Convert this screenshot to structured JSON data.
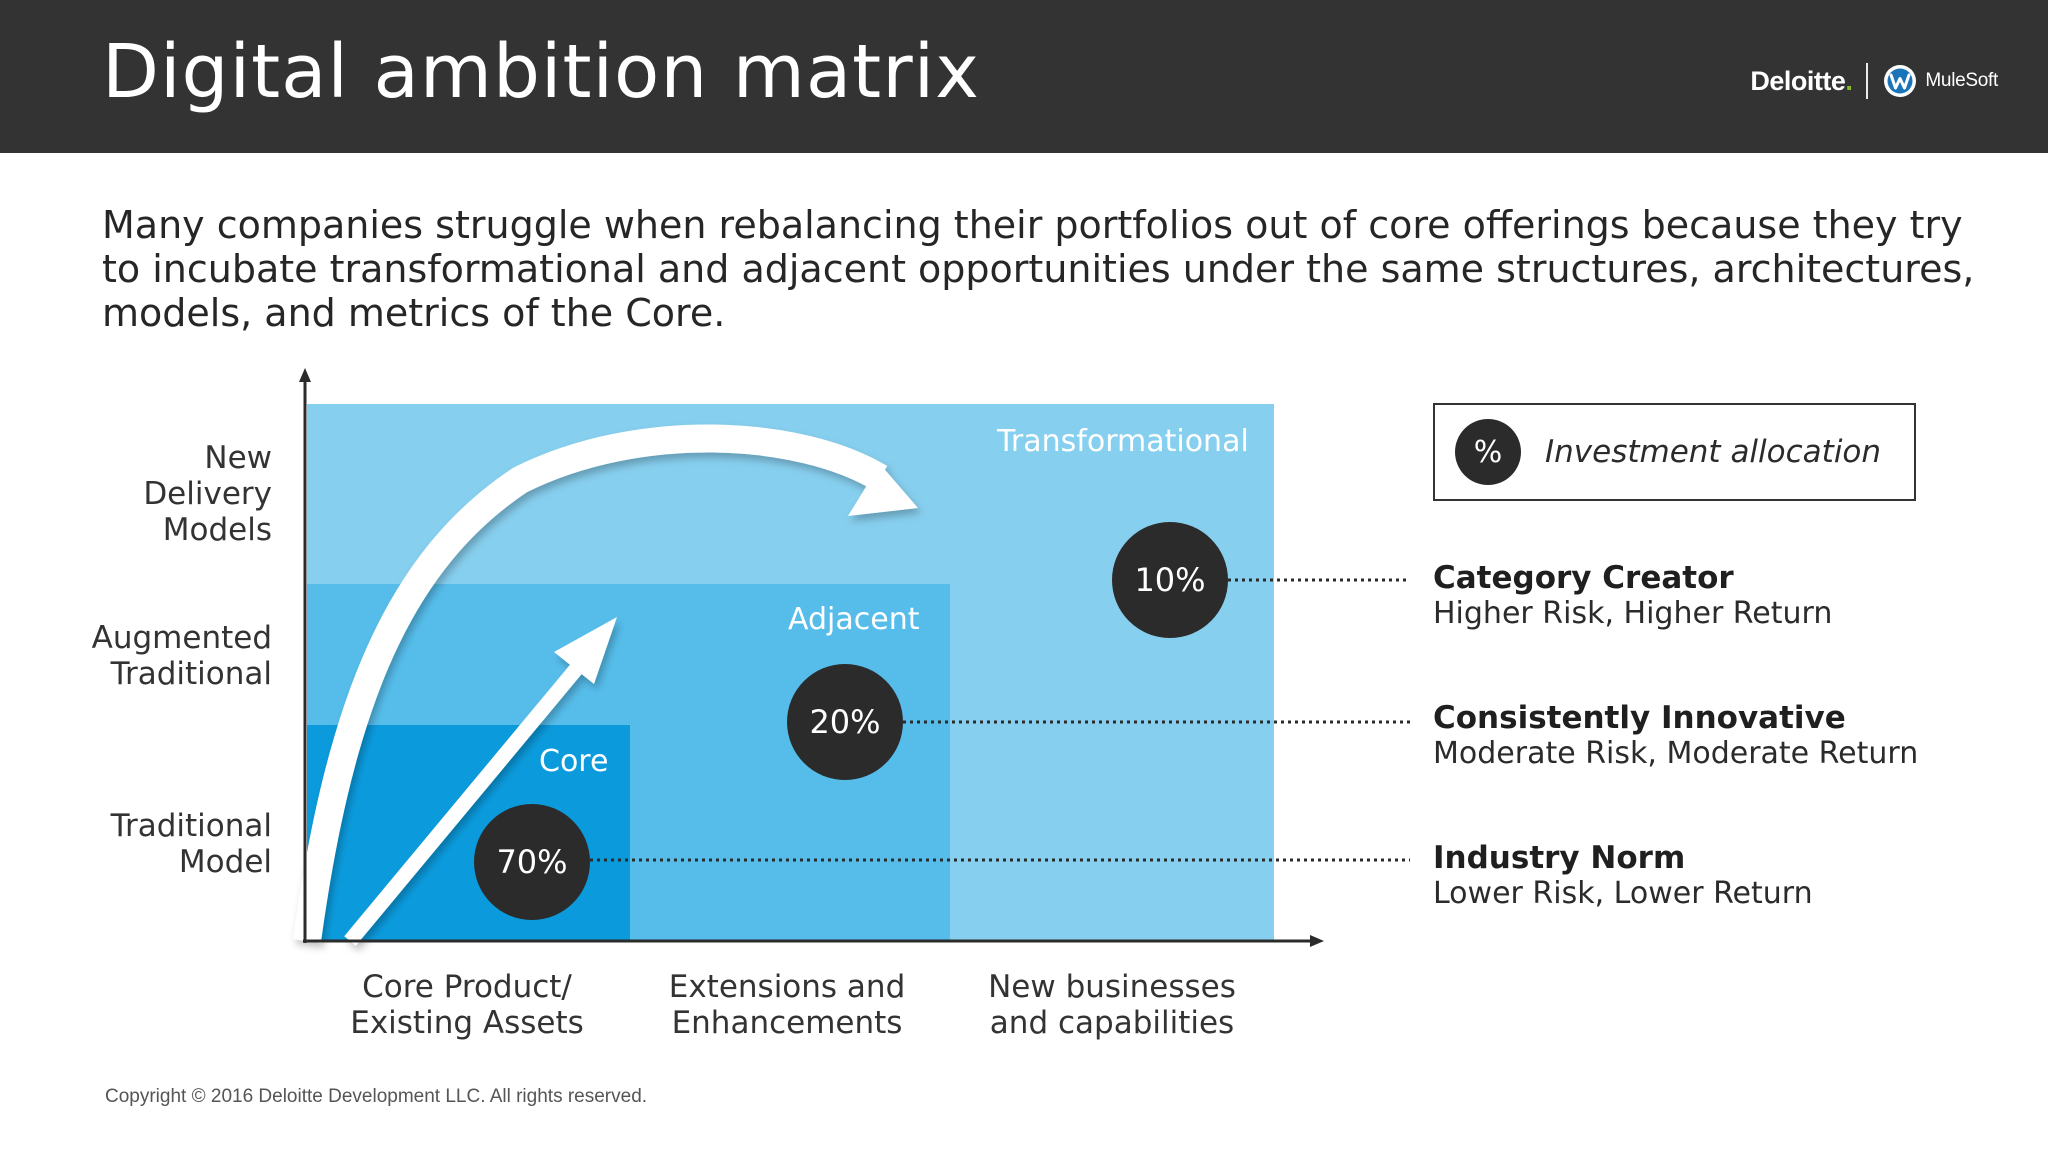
{
  "header": {
    "title": "Digital ambition matrix",
    "logos": {
      "deloitte": "Deloitte",
      "deloitte_dot": ".",
      "mulesoft": "MuleSoft"
    }
  },
  "intro": "Many companies struggle when rebalancing their portfolios out of core offerings because they try to incubate transformational and adjacent opportunities under the same structures, architectures, models, and metrics of the Core.",
  "matrix": {
    "y_axis": [
      {
        "line1": "New",
        "line2": "Delivery",
        "line3": "Models"
      },
      {
        "line1": "Augmented",
        "line2": "Traditional"
      },
      {
        "line1": "Traditional",
        "line2": "Model"
      }
    ],
    "x_axis": [
      {
        "line1": "Core Product/",
        "line2": "Existing Assets"
      },
      {
        "line1": "Extensions and",
        "line2": "Enhancements"
      },
      {
        "line1": "New businesses",
        "line2": "and capabilities"
      }
    ],
    "zones": [
      {
        "label": "Core",
        "allocation": "70%",
        "color": "#0b9bdd"
      },
      {
        "label": "Adjacent",
        "allocation": "20%",
        "color": "#56bdeb"
      },
      {
        "label": "Transformational",
        "allocation": "10%",
        "color": "#87cfef"
      }
    ]
  },
  "legend": {
    "symbol": "%",
    "label": "Investment allocation"
  },
  "profiles": [
    {
      "name": "Category Creator",
      "desc": "Higher Risk, Higher Return"
    },
    {
      "name": "Consistently Innovative",
      "desc": "Moderate Risk, Moderate Return"
    },
    {
      "name": "Industry Norm",
      "desc": "Lower Risk, Lower Return"
    }
  ],
  "copyright": "Copyright © 2016 Deloitte Development LLC. All rights reserved."
}
